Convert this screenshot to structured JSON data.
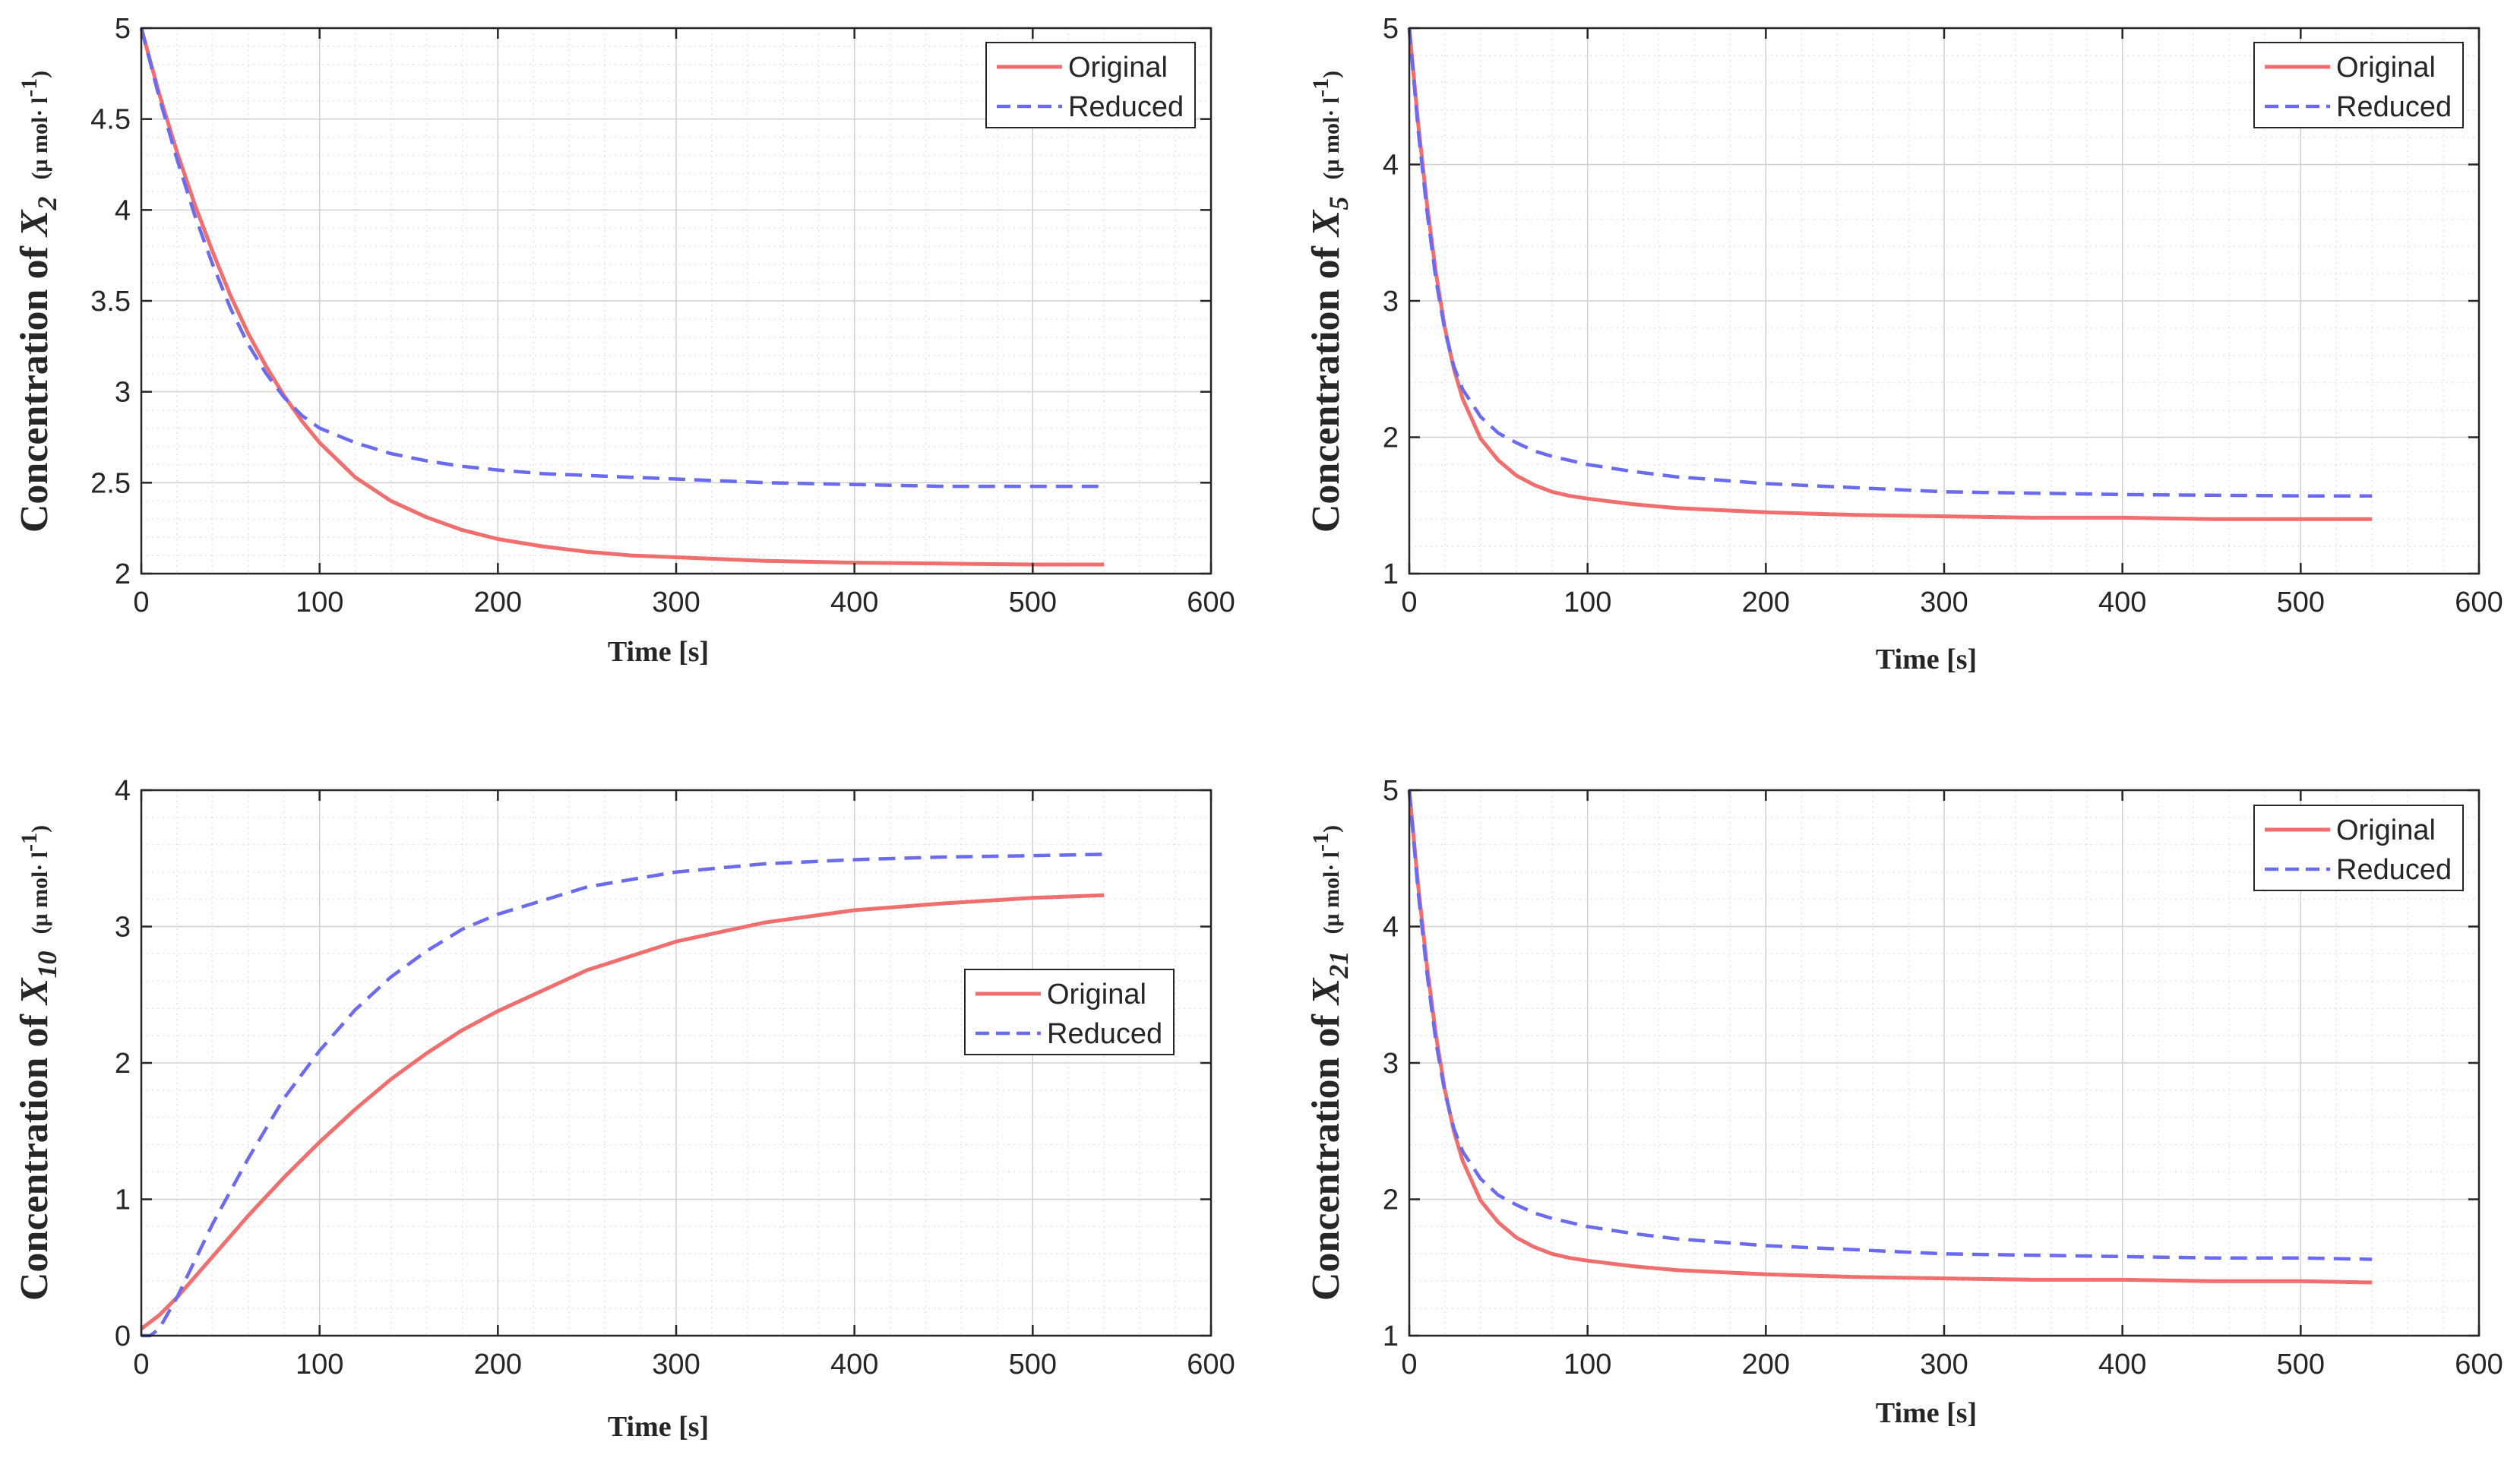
{
  "colors": {
    "original": "#f06e6e",
    "reduced": "#6b6bef",
    "axes": "#262626",
    "grid": "#d0d0d0",
    "minor_grid": "#e4e4e4"
  },
  "chart_data": [
    {
      "type": "line",
      "title": "",
      "xlabel": "Time [s]",
      "ylabel": {
        "prefix": "Concentration of ",
        "symbol": "X",
        "sub": "2",
        "unit": "(μ mol· l",
        "unit_exp": "-1",
        "unit_close": ")"
      },
      "xlim": [
        0,
        600
      ],
      "ylim": [
        2,
        5
      ],
      "xticks": [
        0,
        100,
        200,
        300,
        400,
        500,
        600
      ],
      "yticks": [
        2,
        2.5,
        3,
        3.5,
        4,
        4.5,
        5
      ],
      "ytick_labels": [
        "2",
        "2.5",
        "3",
        "3.5",
        "4",
        "4.5",
        "5"
      ],
      "grid": true,
      "legend_position": "top-right",
      "series": [
        {
          "name": "Original",
          "style": "solid",
          "x": [
            0,
            10,
            20,
            30,
            40,
            50,
            60,
            70,
            80,
            90,
            100,
            120,
            140,
            160,
            180,
            200,
            225,
            250,
            275,
            300,
            350,
            400,
            450,
            500,
            540
          ],
          "y": [
            5.0,
            4.64,
            4.32,
            4.03,
            3.77,
            3.53,
            3.32,
            3.14,
            2.98,
            2.84,
            2.72,
            2.53,
            2.4,
            2.31,
            2.24,
            2.19,
            2.15,
            2.12,
            2.1,
            2.09,
            2.07,
            2.06,
            2.055,
            2.05,
            2.05
          ]
        },
        {
          "name": "Reduced",
          "style": "dashed",
          "x": [
            0,
            10,
            20,
            30,
            40,
            50,
            60,
            70,
            80,
            90,
            100,
            120,
            140,
            160,
            180,
            200,
            225,
            250,
            275,
            300,
            350,
            400,
            450,
            500,
            540
          ],
          "y": [
            5.0,
            4.62,
            4.28,
            3.97,
            3.7,
            3.46,
            3.26,
            3.1,
            2.97,
            2.87,
            2.8,
            2.72,
            2.66,
            2.62,
            2.59,
            2.57,
            2.55,
            2.54,
            2.53,
            2.52,
            2.5,
            2.49,
            2.48,
            2.48,
            2.48
          ]
        }
      ]
    },
    {
      "type": "line",
      "title": "",
      "xlabel": "Time [s]",
      "ylabel": {
        "prefix": "Concentration of ",
        "symbol": "X",
        "sub": "5",
        "unit": "(μ mol· l",
        "unit_exp": "-1",
        "unit_close": ")"
      },
      "xlim": [
        0,
        600
      ],
      "ylim": [
        1,
        5
      ],
      "xticks": [
        0,
        100,
        200,
        300,
        400,
        500,
        600
      ],
      "yticks": [
        1,
        2,
        3,
        4,
        5
      ],
      "ytick_labels": [
        "1",
        "2",
        "3",
        "4",
        "5"
      ],
      "grid": true,
      "legend_position": "top-right",
      "series": [
        {
          "name": "Original",
          "style": "solid",
          "x": [
            0,
            5,
            10,
            15,
            20,
            25,
            30,
            40,
            50,
            60,
            70,
            80,
            90,
            100,
            125,
            150,
            200,
            250,
            300,
            350,
            400,
            450,
            500,
            540
          ],
          "y": [
            5.0,
            4.3,
            3.7,
            3.2,
            2.8,
            2.5,
            2.28,
            1.99,
            1.83,
            1.72,
            1.65,
            1.6,
            1.57,
            1.55,
            1.51,
            1.48,
            1.45,
            1.43,
            1.42,
            1.41,
            1.41,
            1.4,
            1.4,
            1.4
          ]
        },
        {
          "name": "Reduced",
          "style": "dashed",
          "x": [
            0,
            5,
            10,
            15,
            20,
            25,
            30,
            40,
            50,
            60,
            70,
            80,
            90,
            100,
            125,
            150,
            200,
            250,
            300,
            350,
            400,
            450,
            500,
            540
          ],
          "y": [
            5.0,
            4.25,
            3.65,
            3.15,
            2.78,
            2.52,
            2.35,
            2.15,
            2.03,
            1.96,
            1.9,
            1.86,
            1.83,
            1.8,
            1.75,
            1.71,
            1.66,
            1.63,
            1.6,
            1.59,
            1.58,
            1.575,
            1.57,
            1.57
          ]
        }
      ]
    },
    {
      "type": "line",
      "title": "",
      "xlabel": "Time [s]",
      "ylabel": {
        "prefix": "Concentration of ",
        "symbol": "X",
        "sub": "10",
        "unit": "(μ mol· l",
        "unit_exp": "-1",
        "unit_close": ")"
      },
      "xlim": [
        0,
        600
      ],
      "ylim": [
        0,
        4
      ],
      "xticks": [
        0,
        100,
        200,
        300,
        400,
        500,
        600
      ],
      "yticks": [
        0,
        1,
        2,
        3,
        4
      ],
      "ytick_labels": [
        "0",
        "1",
        "2",
        "3",
        "4"
      ],
      "grid": true,
      "legend_position": "center-right",
      "series": [
        {
          "name": "Original",
          "style": "solid",
          "x": [
            0,
            10,
            20,
            30,
            40,
            50,
            60,
            80,
            100,
            120,
            140,
            160,
            180,
            200,
            250,
            300,
            350,
            400,
            450,
            500,
            540
          ],
          "y": [
            0.05,
            0.15,
            0.28,
            0.43,
            0.58,
            0.73,
            0.88,
            1.16,
            1.42,
            1.66,
            1.88,
            2.07,
            2.24,
            2.38,
            2.68,
            2.89,
            3.03,
            3.12,
            3.17,
            3.21,
            3.23
          ]
        },
        {
          "name": "Reduced",
          "style": "dashed",
          "x": [
            0,
            5,
            10,
            20,
            30,
            40,
            50,
            60,
            80,
            100,
            120,
            140,
            160,
            180,
            200,
            250,
            300,
            350,
            400,
            450,
            500,
            540
          ],
          "y": [
            0.0,
            0.0,
            0.05,
            0.28,
            0.55,
            0.82,
            1.06,
            1.3,
            1.74,
            2.09,
            2.39,
            2.63,
            2.82,
            2.98,
            3.09,
            3.29,
            3.4,
            3.46,
            3.49,
            3.51,
            3.52,
            3.53
          ]
        }
      ]
    },
    {
      "type": "line",
      "title": "",
      "xlabel": "Time [s]",
      "ylabel": {
        "prefix": "Concentration of ",
        "symbol": "X",
        "sub": "21",
        "unit": "(μ mol· l",
        "unit_exp": "-1",
        "unit_close": ")"
      },
      "xlim": [
        0,
        600
      ],
      "ylim": [
        1,
        5
      ],
      "xticks": [
        0,
        100,
        200,
        300,
        400,
        500,
        600
      ],
      "yticks": [
        1,
        2,
        3,
        4,
        5
      ],
      "ytick_labels": [
        "1",
        "2",
        "3",
        "4",
        "5"
      ],
      "grid": true,
      "legend_position": "top-right",
      "series": [
        {
          "name": "Original",
          "style": "solid",
          "x": [
            0,
            5,
            10,
            15,
            20,
            25,
            30,
            40,
            50,
            60,
            70,
            80,
            90,
            100,
            125,
            150,
            200,
            250,
            300,
            350,
            400,
            450,
            500,
            540
          ],
          "y": [
            5.0,
            4.3,
            3.7,
            3.2,
            2.8,
            2.5,
            2.28,
            1.99,
            1.83,
            1.72,
            1.65,
            1.6,
            1.57,
            1.55,
            1.51,
            1.48,
            1.45,
            1.43,
            1.42,
            1.41,
            1.41,
            1.4,
            1.4,
            1.39
          ]
        },
        {
          "name": "Reduced",
          "style": "dashed",
          "x": [
            0,
            5,
            10,
            15,
            20,
            25,
            30,
            40,
            50,
            60,
            70,
            80,
            90,
            100,
            125,
            150,
            200,
            250,
            300,
            350,
            400,
            450,
            500,
            540
          ],
          "y": [
            5.0,
            4.25,
            3.65,
            3.15,
            2.78,
            2.52,
            2.35,
            2.15,
            2.03,
            1.96,
            1.9,
            1.86,
            1.83,
            1.8,
            1.75,
            1.71,
            1.66,
            1.63,
            1.6,
            1.59,
            1.58,
            1.57,
            1.57,
            1.56
          ]
        }
      ]
    }
  ]
}
